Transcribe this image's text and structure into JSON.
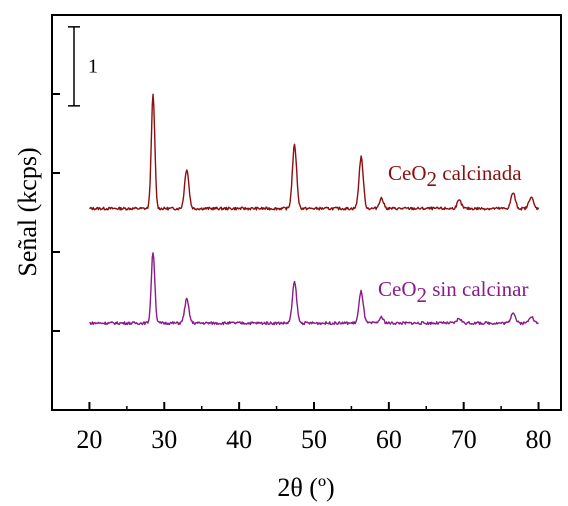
{
  "chart_data": {
    "type": "line",
    "xlabel": "2θ (º)",
    "ylabel": "Señal (kcps)",
    "xlim": [
      15,
      83
    ],
    "ylim": [
      0,
      5
    ],
    "x_ticks": [
      20,
      30,
      40,
      50,
      60,
      70,
      80
    ],
    "x_tick_labels": [
      "20",
      "30",
      "40",
      "50",
      "60",
      "70",
      "80"
    ],
    "y_ticks": [
      1,
      2,
      3,
      4
    ],
    "scale_bar": {
      "label": "1",
      "from": 3.85,
      "to": 4.85
    },
    "grid": false,
    "series": [
      {
        "name_base": "CeO",
        "name_sub": "2",
        "name_rest": " calcinada",
        "color": "#8b0f0f",
        "baseline": 2.55,
        "x_range": [
          20,
          80
        ],
        "peaks": [
          {
            "x": 28.5,
            "y": 3.98
          },
          {
            "x": 33.0,
            "y": 3.05
          },
          {
            "x": 47.4,
            "y": 3.35
          },
          {
            "x": 56.3,
            "y": 3.2
          },
          {
            "x": 59.0,
            "y": 2.68
          },
          {
            "x": 69.4,
            "y": 2.65
          },
          {
            "x": 76.6,
            "y": 2.75
          },
          {
            "x": 79.0,
            "y": 2.7
          }
        ]
      },
      {
        "name_base": "CeO",
        "name_sub": "2",
        "name_rest": " sin calcinar",
        "color": "#8b1a8b",
        "baseline": 1.1,
        "x_range": [
          20,
          80
        ],
        "peaks": [
          {
            "x": 28.5,
            "y": 2.0
          },
          {
            "x": 33.0,
            "y": 1.4
          },
          {
            "x": 47.4,
            "y": 1.62
          },
          {
            "x": 56.3,
            "y": 1.5
          },
          {
            "x": 59.0,
            "y": 1.17
          },
          {
            "x": 69.4,
            "y": 1.16
          },
          {
            "x": 76.6,
            "y": 1.24
          },
          {
            "x": 79.0,
            "y": 1.19
          }
        ]
      }
    ]
  }
}
